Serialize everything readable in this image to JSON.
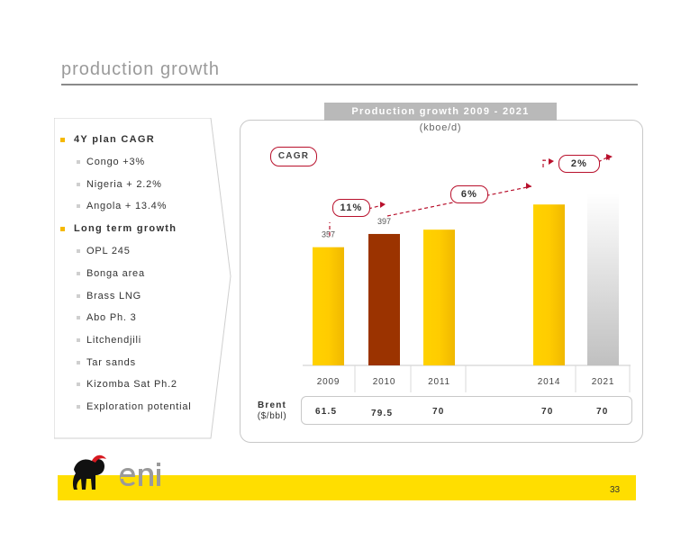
{
  "slide": {
    "title": "production growth",
    "page_number": "33"
  },
  "left": {
    "groups": [
      {
        "label": "4Y plan CAGR",
        "items": [
          "Congo +3%",
          "Nigeria + 2.2%",
          "Angola + 13.4%"
        ]
      },
      {
        "label": "Long term growth",
        "items": [
          "OPL 245",
          "Bonga area",
          "Brass LNG",
          "Abo Ph. 3",
          "Litchendjili",
          "Tar sands",
          "Kizomba Sat Ph.2",
          "Exploration potential"
        ]
      }
    ]
  },
  "chart_header": {
    "title": "Production growth 2009 - 2021",
    "unit": "(kboe/d)"
  },
  "cagr": {
    "label": "CAGR",
    "values": [
      "11%",
      "6%",
      "2%"
    ]
  },
  "brent": {
    "label": "Brent",
    "unit": "($/bbl)",
    "values": [
      "61.5",
      "79.5",
      "70",
      "70",
      "70"
    ]
  },
  "logo": {
    "text": "eni"
  },
  "colors": {
    "accent_yellow": "#ffcc00",
    "bar_2010": "#9b3300",
    "cagr_red": "#b8102c",
    "footer": "#ffde00"
  },
  "chart_data": {
    "type": "bar",
    "categories": [
      "2009",
      "2010",
      "2011",
      "2014",
      "2021"
    ],
    "values": [
      357,
      397,
      410,
      486,
      522
    ],
    "data_labels": [
      "357",
      "397",
      "",
      "",
      ""
    ],
    "ylim": [
      0,
      560
    ]
  }
}
